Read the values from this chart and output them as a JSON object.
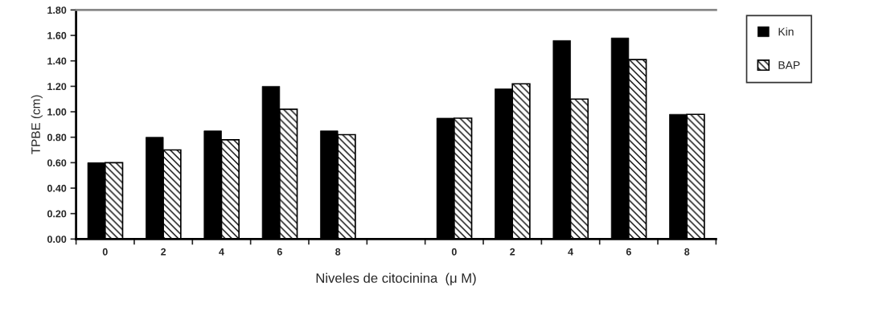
{
  "chart_data": {
    "type": "bar",
    "xlabel": "Niveles de citocinina  (μ M)",
    "ylabel": "TPBE (cm)",
    "categories": [
      "0",
      "2",
      "4",
      "6",
      "8",
      null,
      "0",
      "2",
      "4",
      "6",
      "8"
    ],
    "series": [
      {
        "name": "Kin",
        "color": "#000000",
        "values": [
          0.6,
          0.8,
          0.85,
          1.2,
          0.85,
          null,
          0.95,
          1.18,
          1.56,
          1.58,
          0.98
        ]
      },
      {
        "name": "BAP",
        "color": "#000000",
        "values": [
          0.6,
          0.7,
          0.78,
          1.02,
          0.82,
          null,
          0.95,
          1.22,
          1.1,
          1.41,
          0.98
        ]
      }
    ],
    "ylim": [
      0,
      1.8
    ],
    "yticks": [
      {
        "value": 0,
        "label": "0.00"
      },
      {
        "value": 0.2,
        "label": "0.20"
      },
      {
        "value": 0.4,
        "label": "0.40"
      },
      {
        "value": 0.6,
        "label": "0.60"
      },
      {
        "value": 0.8,
        "label": "0.80"
      },
      {
        "value": 1.0,
        "label": "1.00"
      },
      {
        "value": 1.2,
        "label": "1.20"
      },
      {
        "value": 1.4,
        "label": "1.40"
      },
      {
        "value": 1.6,
        "label": "1.60"
      },
      {
        "value": 1.8,
        "label": "1.80"
      }
    ],
    "grid": false,
    "legend": "top right"
  }
}
